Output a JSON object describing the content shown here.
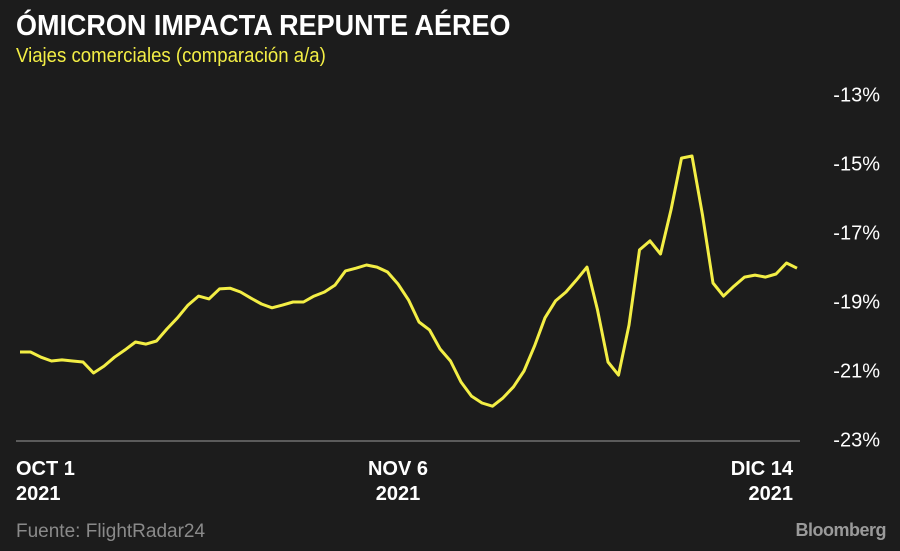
{
  "chart_data": {
    "type": "line",
    "title": "ÓMICRON IMPACTA REPUNTE AÉREO",
    "subtitle": "Viajes comerciales (comparación a/a)",
    "source": "Fuente: FlightRadar24",
    "brand": "Bloomberg",
    "color": "#f3ee45",
    "x": [
      "2021-10-01",
      "2021-10-02",
      "2021-10-03",
      "2021-10-04",
      "2021-10-05",
      "2021-10-06",
      "2021-10-07",
      "2021-10-08",
      "2021-10-09",
      "2021-10-10",
      "2021-10-11",
      "2021-10-12",
      "2021-10-13",
      "2021-10-14",
      "2021-10-15",
      "2021-10-16",
      "2021-10-17",
      "2021-10-18",
      "2021-10-19",
      "2021-10-20",
      "2021-10-21",
      "2021-10-22",
      "2021-10-23",
      "2021-10-24",
      "2021-10-25",
      "2021-10-26",
      "2021-10-27",
      "2021-10-28",
      "2021-10-29",
      "2021-10-30",
      "2021-10-31",
      "2021-11-01",
      "2021-11-02",
      "2021-11-03",
      "2021-11-04",
      "2021-11-05",
      "2021-11-06",
      "2021-11-07",
      "2021-11-08",
      "2021-11-09",
      "2021-11-10",
      "2021-11-11",
      "2021-11-12",
      "2021-11-13",
      "2021-11-14",
      "2021-11-15",
      "2021-11-16",
      "2021-11-17",
      "2021-11-18",
      "2021-11-19",
      "2021-11-20",
      "2021-11-21",
      "2021-11-22",
      "2021-11-23",
      "2021-11-24",
      "2021-11-25",
      "2021-11-26",
      "2021-11-27",
      "2021-11-28",
      "2021-11-29",
      "2021-11-30",
      "2021-12-01",
      "2021-12-02",
      "2021-12-03",
      "2021-12-04",
      "2021-12-05",
      "2021-12-06",
      "2021-12-07",
      "2021-12-08",
      "2021-12-09",
      "2021-12-10",
      "2021-12-11",
      "2021-12-12",
      "2021-12-13",
      "2021-12-14"
    ],
    "values": [
      -20.42,
      -20.42,
      -20.57,
      -20.68,
      -20.65,
      -20.68,
      -20.71,
      -21.03,
      -20.83,
      -20.57,
      -20.36,
      -20.13,
      -20.19,
      -20.1,
      -19.75,
      -19.43,
      -19.06,
      -18.8,
      -18.88,
      -18.59,
      -18.57,
      -18.68,
      -18.86,
      -19.03,
      -19.14,
      -19.06,
      -18.97,
      -18.97,
      -18.8,
      -18.68,
      -18.48,
      -18.07,
      -17.99,
      -17.9,
      -17.96,
      -18.1,
      -18.45,
      -18.91,
      -19.55,
      -19.78,
      -20.33,
      -20.68,
      -21.29,
      -21.7,
      -21.9,
      -21.99,
      -21.75,
      -21.43,
      -20.97,
      -20.25,
      -19.43,
      -18.94,
      -18.68,
      -18.33,
      -17.96,
      -19.2,
      -20.71,
      -21.09,
      -19.64,
      -17.46,
      -17.2,
      -17.58,
      -16.3,
      -14.8,
      -14.74,
      -16.45,
      -18.42,
      -18.8,
      -18.51,
      -18.25,
      -18.19,
      -18.25,
      -18.16,
      -17.84,
      -17.99
    ],
    "xlim": [
      "2021-10-01",
      "2021-12-14"
    ],
    "xticks": [
      {
        "value": "2021-10-01",
        "label": "OCT 1\n2021"
      },
      {
        "value": "2021-11-06",
        "label": "NOV 6\n2021"
      },
      {
        "value": "2021-12-14",
        "label": "DIC 14\n2021"
      }
    ],
    "ylim": [
      -23,
      -13
    ],
    "yticks": [
      {
        "value": -13,
        "label": "-13%"
      },
      {
        "value": -15,
        "label": "-15%"
      },
      {
        "value": -17,
        "label": "-17%"
      },
      {
        "value": -19,
        "label": "-19%"
      },
      {
        "value": -21,
        "label": "-21%"
      },
      {
        "value": -23,
        "label": "-23%"
      }
    ],
    "grid": false
  }
}
